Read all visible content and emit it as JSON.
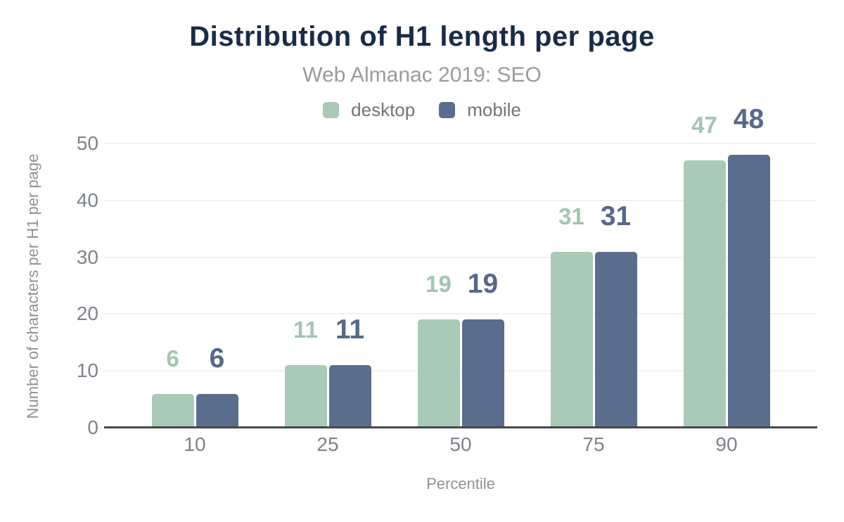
{
  "chart_data": {
    "type": "bar",
    "title": "Distribution of H1 length per page",
    "subtitle": "Web Almanac 2019: SEO",
    "xlabel": "Percentile",
    "ylabel": "Number of characters per H1 per page",
    "categories": [
      "10",
      "25",
      "50",
      "75",
      "90"
    ],
    "series": [
      {
        "name": "desktop",
        "color": "#a9cab6",
        "label_color": "#a2c5b0",
        "values": [
          6,
          11,
          19,
          31,
          47
        ]
      },
      {
        "name": "mobile",
        "color": "#5b6d8d",
        "label_color": "#56688a",
        "values": [
          6,
          11,
          19,
          31,
          48
        ]
      }
    ],
    "ylim": [
      0,
      50
    ],
    "yticks": [
      0,
      10,
      20,
      30,
      40,
      50
    ],
    "grid": true,
    "legend_position": "top"
  },
  "colors": {
    "background": "#ffffff",
    "title": "#1a2b49",
    "subtitle": "#9b9b9b",
    "legend_text": "#6e757c",
    "tick_label": "#7d838a",
    "axis_title": "#8d9298",
    "gridline": "#f1f1f1",
    "axis_line": "#47494b",
    "desktop": "#a9cab6",
    "mobile": "#5b6d8d"
  }
}
